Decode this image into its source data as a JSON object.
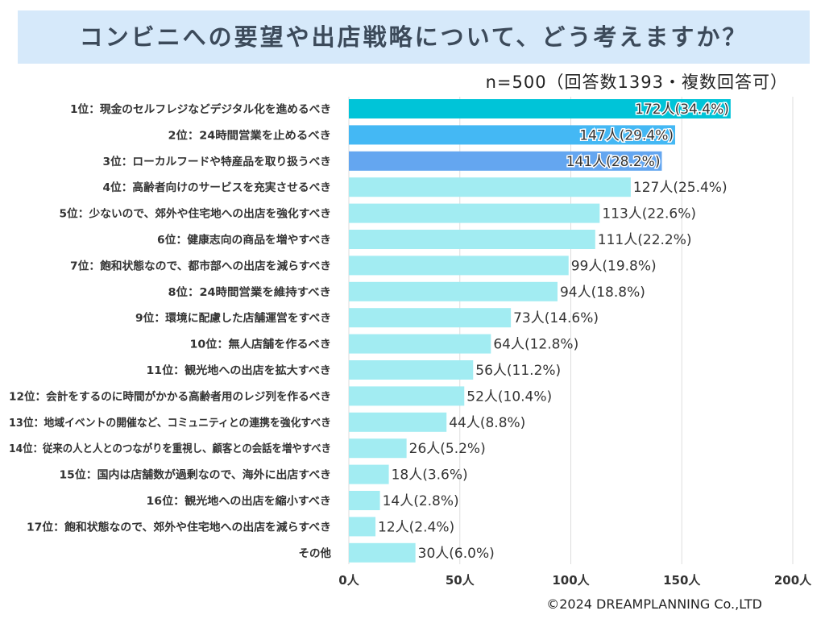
{
  "title": "コンビニへの要望や出店戦略について、どう考えますか？",
  "note": "n=500（回答数1393・複数回答可）",
  "copyright": "©2024 DREAMPLANNING Co.,LTD",
  "colors": {
    "rank1": "#00c4d8",
    "rank2": "#44b8f4",
    "rank3": "#64a6f0",
    "default": "#a2ecf2",
    "grid": "#dddddd",
    "label": "#333333",
    "value_text": "#333333"
  },
  "chart_data": {
    "type": "bar",
    "orientation": "horizontal",
    "title": "コンビニへの要望や出店戦略について、どう考えますか？",
    "xlabel": "",
    "ylabel": "",
    "xlim": [
      0,
      200
    ],
    "ticks": [
      "0人",
      "50人",
      "100人",
      "150人",
      "200人"
    ],
    "tick_values": [
      0,
      50,
      100,
      150,
      200
    ],
    "grid": true,
    "categories": [
      "1位：現金のセルフレジなどデジタル化を進めるべき",
      "2位：24時間営業を止めるべき",
      "3位：ローカルフードや特産品を取り扱うべき",
      "4位：高齢者向けのサービスを充実させるべき",
      "5位：少ないので、郊外や住宅地への出店を強化すべき",
      "6位：健康志向の商品を増やすべき",
      "7位：飽和状態なので、都市部への出店を減らすべき",
      "8位：24時間営業を維持すべき",
      "9位：環境に配慮した店舗運営をすべき",
      "10位：無人店舗を作るべき",
      "11位：観光地への出店を拡大すべき",
      "12位：会計をするのに時間がかかる高齢者用のレジ列を作るべき",
      "13位：地域イベントの開催など、コミュニティとの連携を強化すべき",
      "14位：従来の人と人とのつながりを重視し、顧客との会話を増やすべき",
      "15位：国内は店舗数が過剰なので、海外に出店すべき",
      "16位：観光地への出店を縮小すべき",
      "17位：飽和状態なので、郊外や住宅地への出店を減らすべき",
      "その他"
    ],
    "values": [
      172,
      147,
      141,
      127,
      113,
      111,
      99,
      94,
      73,
      64,
      56,
      52,
      44,
      26,
      18,
      14,
      12,
      30
    ],
    "value_labels": [
      "172人(34.4%)",
      "147人(29.4%)",
      "141人(28.2%)",
      "127人(25.4%)",
      "113人(22.6%)",
      "111人(22.2%)",
      "99人(19.8%)",
      "94人(18.8%)",
      "73人(14.6%)",
      "64人(12.8%)",
      "56人(11.2%)",
      "52人(10.4%)",
      "44人(8.8%)",
      "26人(5.2%)",
      "18人(3.6%)",
      "14人(2.8%)",
      "12人(2.4%)",
      "30人(6.0%)"
    ]
  }
}
